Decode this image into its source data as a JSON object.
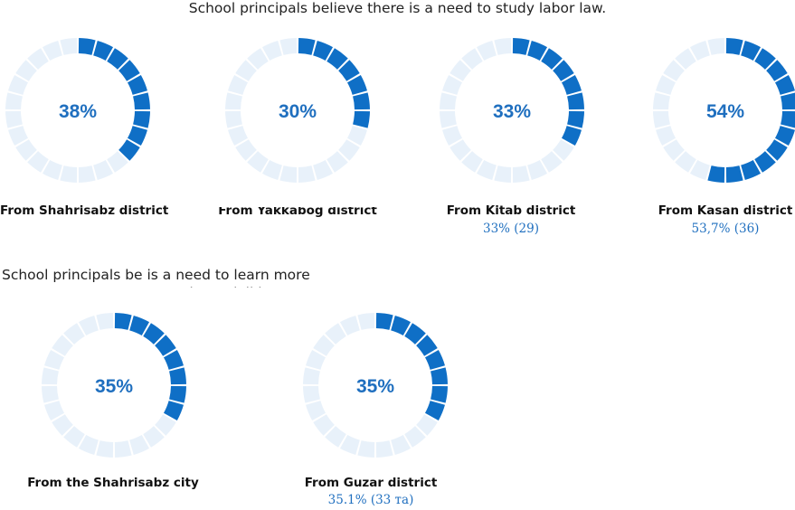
{
  "colors": {
    "filled": "#0f6fc6",
    "empty": "#e8f1fa",
    "label": "#1f6fbf"
  },
  "segments_per_ring": 24,
  "chart_data": [
    {
      "type": "donut",
      "title": "School principals believe there is a need to study labor law.",
      "items": [
        {
          "percent": 38,
          "label": "38%",
          "category": "From Shahrisabz district",
          "value_text": ""
        },
        {
          "percent": 30,
          "label": "30%",
          "category": "From Yakkabog district",
          "value_text": ""
        },
        {
          "percent": 33,
          "label": "33%",
          "category": "From Kitab district",
          "value_text": "33% (29)"
        },
        {
          "percent": 54,
          "label": "54%",
          "category": "From Kasan district",
          "value_text": "53,7% (36)"
        }
      ]
    },
    {
      "type": "donut",
      "title_lines": [
        "School principals be            is a need to learn more",
        "about civil law."
      ],
      "items": [
        {
          "percent": 35,
          "label": "35%",
          "category": "From the Shahrisabz city",
          "value_text": ""
        },
        {
          "percent": 35,
          "label": "35%",
          "category": "From Guzar district",
          "value_text": "35.1% (33 та)"
        }
      ]
    }
  ]
}
